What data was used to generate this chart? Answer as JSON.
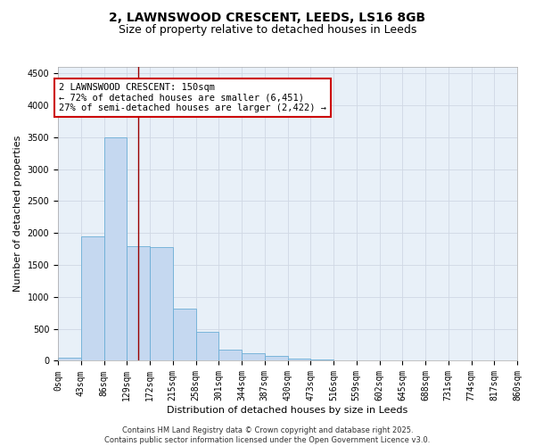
{
  "title": "2, LAWNSWOOD CRESCENT, LEEDS, LS16 8GB",
  "subtitle": "Size of property relative to detached houses in Leeds",
  "xlabel": "Distribution of detached houses by size in Leeds",
  "ylabel": "Number of detached properties",
  "bar_color": "#c5d8f0",
  "bar_edge_color": "#6baed6",
  "background_color": "#e8f0f8",
  "grid_color": "#d0d8e4",
  "vline_x": 150,
  "vline_color": "#990000",
  "annotation_text": "2 LAWNSWOOD CRESCENT: 150sqm\n← 72% of detached houses are smaller (6,451)\n27% of semi-detached houses are larger (2,422) →",
  "annotation_box_color": "#cc0000",
  "bin_edges": [
    0,
    43,
    86,
    129,
    172,
    215,
    258,
    301,
    344,
    387,
    430,
    473,
    516,
    559,
    602,
    645,
    688,
    731,
    774,
    817,
    860
  ],
  "bar_heights": [
    45,
    1950,
    3500,
    1800,
    1780,
    820,
    450,
    170,
    120,
    80,
    40,
    20,
    5,
    2,
    2,
    2,
    2,
    2,
    2,
    2
  ],
  "ylim": [
    0,
    4600
  ],
  "yticks": [
    0,
    500,
    1000,
    1500,
    2000,
    2500,
    3000,
    3500,
    4000,
    4500
  ],
  "footer_text": "Contains HM Land Registry data © Crown copyright and database right 2025.\nContains public sector information licensed under the Open Government Licence v3.0.",
  "title_fontsize": 10,
  "subtitle_fontsize": 9,
  "axis_label_fontsize": 8,
  "tick_fontsize": 7,
  "footer_fontsize": 6,
  "ann_fontsize": 7.5
}
